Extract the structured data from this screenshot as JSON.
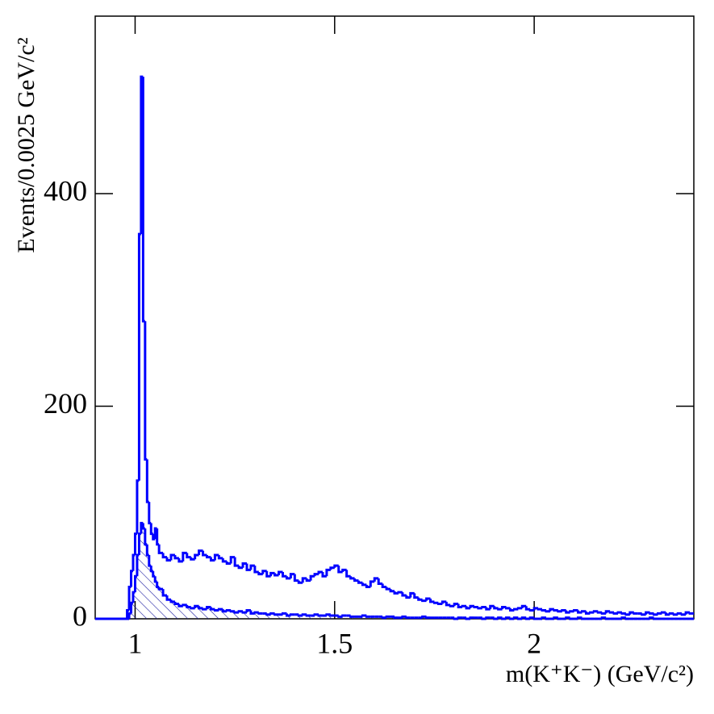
{
  "chart_data": {
    "type": "histogram",
    "xlabel": "m(K⁺K⁻) (GeV/c²)",
    "ylabel": "Events/0.0025 GeV/c²",
    "xlim": [
      0.9,
      2.4
    ],
    "ylim": [
      0,
      567
    ],
    "xticks": [
      1,
      1.5,
      2
    ],
    "yticks": [
      0,
      200,
      400
    ],
    "bins": [
      0.9,
      0.98,
      0.985,
      0.99,
      0.995,
      1.0,
      1.005,
      1.01,
      1.015,
      1.02,
      1.025,
      1.03,
      1.035,
      1.04,
      1.045,
      1.05,
      1.055,
      1.06,
      1.07,
      1.08,
      1.09,
      1.1,
      1.11,
      1.12,
      1.13,
      1.14,
      1.15,
      1.16,
      1.17,
      1.18,
      1.19,
      1.2,
      1.21,
      1.22,
      1.23,
      1.24,
      1.25,
      1.26,
      1.27,
      1.28,
      1.29,
      1.3,
      1.31,
      1.32,
      1.33,
      1.34,
      1.35,
      1.36,
      1.37,
      1.38,
      1.39,
      1.4,
      1.41,
      1.42,
      1.43,
      1.44,
      1.45,
      1.46,
      1.47,
      1.48,
      1.49,
      1.5,
      1.51,
      1.52,
      1.53,
      1.54,
      1.55,
      1.56,
      1.57,
      1.58,
      1.59,
      1.6,
      1.61,
      1.62,
      1.63,
      1.64,
      1.65,
      1.66,
      1.67,
      1.68,
      1.69,
      1.7,
      1.71,
      1.72,
      1.73,
      1.74,
      1.75,
      1.76,
      1.77,
      1.78,
      1.79,
      1.8,
      1.81,
      1.82,
      1.83,
      1.84,
      1.85,
      1.86,
      1.87,
      1.88,
      1.89,
      1.9,
      1.91,
      1.92,
      1.93,
      1.94,
      1.95,
      1.96,
      1.97,
      1.98,
      1.99,
      2.0,
      2.01,
      2.02,
      2.03,
      2.04,
      2.05,
      2.06,
      2.07,
      2.08,
      2.09,
      2.1,
      2.11,
      2.12,
      2.13,
      2.14,
      2.15,
      2.16,
      2.17,
      2.18,
      2.19,
      2.2,
      2.21,
      2.22,
      2.23,
      2.24,
      2.25,
      2.26,
      2.27,
      2.28,
      2.29,
      2.3,
      2.31,
      2.32,
      2.33,
      2.34,
      2.35,
      2.36,
      2.37,
      2.38,
      2.39,
      2.4
    ],
    "series": [
      {
        "color": "#0000ff",
        "values": [
          0,
          8,
          30,
          45,
          60,
          80,
          130,
          362,
          510,
          280,
          150,
          110,
          90,
          80,
          75,
          85,
          70,
          62,
          58,
          55,
          60,
          57,
          54,
          62,
          58,
          56,
          60,
          64,
          60,
          58,
          55,
          60,
          57,
          54,
          52,
          58,
          50,
          48,
          52,
          46,
          50,
          44,
          42,
          45,
          40,
          43,
          41,
          44,
          40,
          38,
          42,
          36,
          34,
          38,
          36,
          40,
          42,
          44,
          40,
          46,
          48,
          50,
          44,
          46,
          40,
          38,
          36,
          34,
          32,
          30,
          35,
          38,
          33,
          30,
          28,
          26,
          24,
          25,
          22,
          20,
          24,
          20,
          18,
          17,
          19,
          16,
          15,
          14,
          16,
          13,
          12,
          14,
          11,
          12,
          10,
          12,
          11,
          10,
          11,
          9,
          12,
          10,
          9,
          11,
          10,
          8,
          9,
          10,
          12,
          9,
          8,
          10,
          9,
          8,
          7,
          9,
          8,
          7,
          8,
          6,
          7,
          8,
          6,
          7,
          5,
          6,
          7,
          6,
          5,
          7,
          6,
          5,
          6,
          5,
          4,
          6,
          5,
          5,
          4,
          6,
          5,
          4,
          5,
          6,
          4,
          5,
          4,
          5,
          4,
          6,
          5
        ]
      },
      {
        "color": "#0000ff",
        "hatch": true,
        "values": [
          0,
          0,
          5,
          15,
          25,
          40,
          60,
          80,
          90,
          85,
          70,
          60,
          50,
          45,
          40,
          35,
          30,
          28,
          22,
          18,
          16,
          14,
          12,
          13,
          11,
          10,
          12,
          10,
          9,
          11,
          9,
          8,
          9,
          7,
          8,
          7,
          6,
          7,
          6,
          8,
          5,
          6,
          5,
          5,
          4,
          5,
          4,
          4,
          5,
          3,
          4,
          4,
          3,
          4,
          3,
          3,
          4,
          3,
          3,
          4,
          3,
          3,
          2,
          3,
          3,
          2,
          2,
          2,
          3,
          2,
          2,
          2,
          2,
          1,
          2,
          2,
          1,
          1,
          2,
          1,
          1,
          1,
          1,
          2,
          1,
          1,
          1,
          1,
          1,
          1,
          1,
          0,
          1,
          1,
          0,
          1,
          1,
          1,
          0,
          1,
          1,
          0,
          1,
          0,
          1,
          0,
          1,
          0,
          1,
          0,
          1,
          0,
          0,
          1,
          0,
          0,
          1,
          0,
          0,
          1,
          0,
          0,
          1,
          0,
          0,
          0,
          0,
          0,
          1,
          0,
          0,
          0,
          0,
          1,
          0,
          0,
          0,
          0,
          0,
          0,
          1,
          0,
          0,
          0,
          0,
          0,
          0,
          0,
          0,
          0,
          0
        ]
      }
    ]
  }
}
